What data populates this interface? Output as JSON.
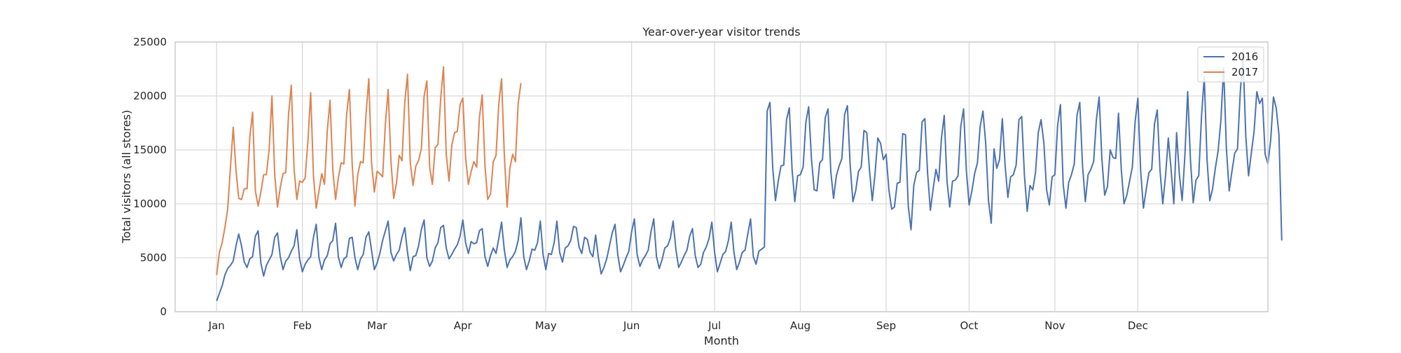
{
  "chart_data": {
    "type": "line",
    "title": "Year-over-year visitor trends",
    "xlabel": "Month",
    "ylabel": "Total visitors (all stores)",
    "x_axis": "day of year (0 = Jan 1)",
    "xlim": [
      -15,
      380
    ],
    "ylim": [
      0,
      25000
    ],
    "yticks": [
      0,
      5000,
      10000,
      15000,
      20000,
      25000
    ],
    "month_ticks": [
      {
        "label": "Jan",
        "day": 0
      },
      {
        "label": "Feb",
        "day": 31
      },
      {
        "label": "Mar",
        "day": 58
      },
      {
        "label": "Apr",
        "day": 89
      },
      {
        "label": "May",
        "day": 119
      },
      {
        "label": "Jun",
        "day": 150
      },
      {
        "label": "Jul",
        "day": 180
      },
      {
        "label": "Aug",
        "day": 211
      },
      {
        "label": "Sep",
        "day": 242
      },
      {
        "label": "Oct",
        "day": 272
      },
      {
        "label": "Nov",
        "day": 303
      },
      {
        "label": "Dec",
        "day": 333
      }
    ],
    "grid": true,
    "legend_position": "top-right",
    "series": [
      {
        "name": "2016",
        "color": "#4c72b0",
        "x_start": 0,
        "values": [
          1000,
          1700,
          2400,
          3400,
          4000,
          4300,
          4700,
          6100,
          7200,
          6100,
          4600,
          4100,
          4900,
          5100,
          7000,
          7500,
          4500,
          3300,
          4300,
          4800,
          5300,
          6900,
          7300,
          5100,
          3900,
          4700,
          5000,
          5600,
          6100,
          7600,
          4900,
          3700,
          4400,
          4800,
          5100,
          6900,
          8100,
          5000,
          3900,
          4800,
          5200,
          6300,
          6600,
          8200,
          5100,
          4100,
          4900,
          5100,
          6800,
          6900,
          5000,
          3900,
          4900,
          5300,
          6900,
          7400,
          5700,
          3900,
          4500,
          5400,
          6600,
          7500,
          8400,
          5500,
          4700,
          5300,
          5700,
          6900,
          7800,
          5500,
          3800,
          5100,
          5200,
          6100,
          7600,
          8500,
          5000,
          4200,
          4700,
          5900,
          6400,
          7800,
          8000,
          5900,
          4900,
          5300,
          5800,
          6200,
          7000,
          8500,
          6400,
          5400,
          6500,
          6300,
          6400,
          7500,
          7700,
          5100,
          4200,
          5200,
          5900,
          5400,
          6800,
          8300,
          5700,
          4100,
          4800,
          5100,
          5600,
          6600,
          8700,
          5100,
          3900,
          4700,
          5800,
          5700,
          6400,
          8400,
          5300,
          3900,
          5400,
          5300,
          6400,
          8400,
          5500,
          4600,
          5900,
          6100,
          6600,
          7900,
          7800,
          6000,
          5400,
          6900,
          6700,
          5500,
          5100,
          7100,
          5000,
          3500,
          4100,
          4900,
          6100,
          7300,
          8100,
          5300,
          3700,
          4300,
          5000,
          5600,
          7400,
          8600,
          5300,
          4200,
          4800,
          5200,
          5700,
          7400,
          8600,
          5100,
          4000,
          4800,
          5900,
          6100,
          6800,
          8400,
          5800,
          4100,
          4600,
          5200,
          5700,
          7000,
          7700,
          5200,
          4100,
          4400,
          5500,
          6000,
          6800,
          8300,
          5500,
          3700,
          4500,
          5300,
          5600,
          6600,
          8300,
          5500,
          3900,
          4600,
          5500,
          5700,
          7200,
          8600,
          5100,
          4400,
          5600,
          5800,
          6000,
          18600,
          19400,
          13400,
          10300,
          12100,
          13500,
          13600,
          17800,
          18900,
          13200,
          10200,
          12600,
          12700,
          13400,
          17600,
          19000,
          14200,
          11300,
          11200,
          13800,
          14100,
          18000,
          18800,
          13000,
          10500,
          12600,
          13500,
          14200,
          18300,
          19100,
          13600,
          10200,
          11200,
          13000,
          13400,
          16800,
          16600,
          13100,
          10300,
          12800,
          16100,
          15600,
          14100,
          14600,
          11300,
          9500,
          9700,
          11900,
          12000,
          16500,
          16400,
          9800,
          7600,
          11700,
          12900,
          13100,
          17600,
          17900,
          12800,
          9400,
          11400,
          13200,
          12100,
          16100,
          18200,
          12100,
          9700,
          12100,
          12200,
          12600,
          17200,
          18800,
          13100,
          9900,
          11200,
          12800,
          13800,
          17200,
          18600,
          15600,
          10300,
          8200,
          15100,
          13300,
          14100,
          17900,
          13600,
          10600,
          12500,
          12700,
          13600,
          17800,
          18100,
          12600,
          9300,
          11700,
          11300,
          12900,
          16600,
          17800,
          15700,
          11300,
          9900,
          12500,
          12700,
          17300,
          19200,
          11800,
          9600,
          12000,
          12700,
          13700,
          18200,
          19400,
          13500,
          10200,
          12700,
          13200,
          13900,
          17800,
          19900,
          14100,
          10800,
          11600,
          15000,
          14300,
          14200,
          18400,
          13200,
          10000,
          10800,
          12100,
          13400,
          17600,
          19800,
          13100,
          9600,
          11300,
          12900,
          13200,
          17400,
          18700,
          13100,
          10000,
          12600,
          16100,
          13200,
          10000,
          16600,
          12700,
          10300,
          14500,
          20400,
          14100,
          10100,
          12200,
          12600,
          18100,
          21800,
          14100,
          10300,
          11400,
          13300,
          14900,
          17700,
          22600,
          15100,
          11200,
          13000,
          14700,
          15100,
          20300,
          23800,
          16300,
          12600,
          14700,
          16700,
          20400,
          19300,
          19800,
          14600,
          13700,
          15900,
          19900,
          18900,
          16400,
          6600
        ]
      },
      {
        "name": "2017",
        "color": "#dd8452",
        "x_start": 0,
        "values": [
          3400,
          5500,
          6400,
          7800,
          9500,
          13400,
          17100,
          13100,
          10500,
          10400,
          11400,
          11400,
          16200,
          18500,
          11200,
          9800,
          11100,
          12700,
          12700,
          15100,
          20000,
          12700,
          9700,
          11500,
          12800,
          12900,
          18300,
          21000,
          13200,
          10400,
          12100,
          12000,
          12400,
          15800,
          20300,
          12600,
          9600,
          11200,
          12800,
          11800,
          16800,
          19600,
          13100,
          10400,
          12400,
          13800,
          13700,
          18300,
          20600,
          13700,
          9800,
          12700,
          13900,
          13800,
          18300,
          21600,
          13800,
          11100,
          13000,
          12800,
          12500,
          17400,
          20600,
          14000,
          10500,
          11900,
          14500,
          14000,
          19400,
          22000,
          13800,
          11700,
          13500,
          14000,
          15100,
          20000,
          21400,
          13400,
          11800,
          15200,
          15500,
          19800,
          22700,
          14600,
          12100,
          15400,
          16600,
          16700,
          19200,
          19800,
          14300,
          11800,
          13000,
          13900,
          13400,
          18000,
          20100,
          13500,
          10400,
          10900,
          13900,
          14500,
          19300,
          21600,
          14500,
          9700,
          13300,
          14600,
          13900,
          19300,
          21200
        ]
      }
    ]
  }
}
